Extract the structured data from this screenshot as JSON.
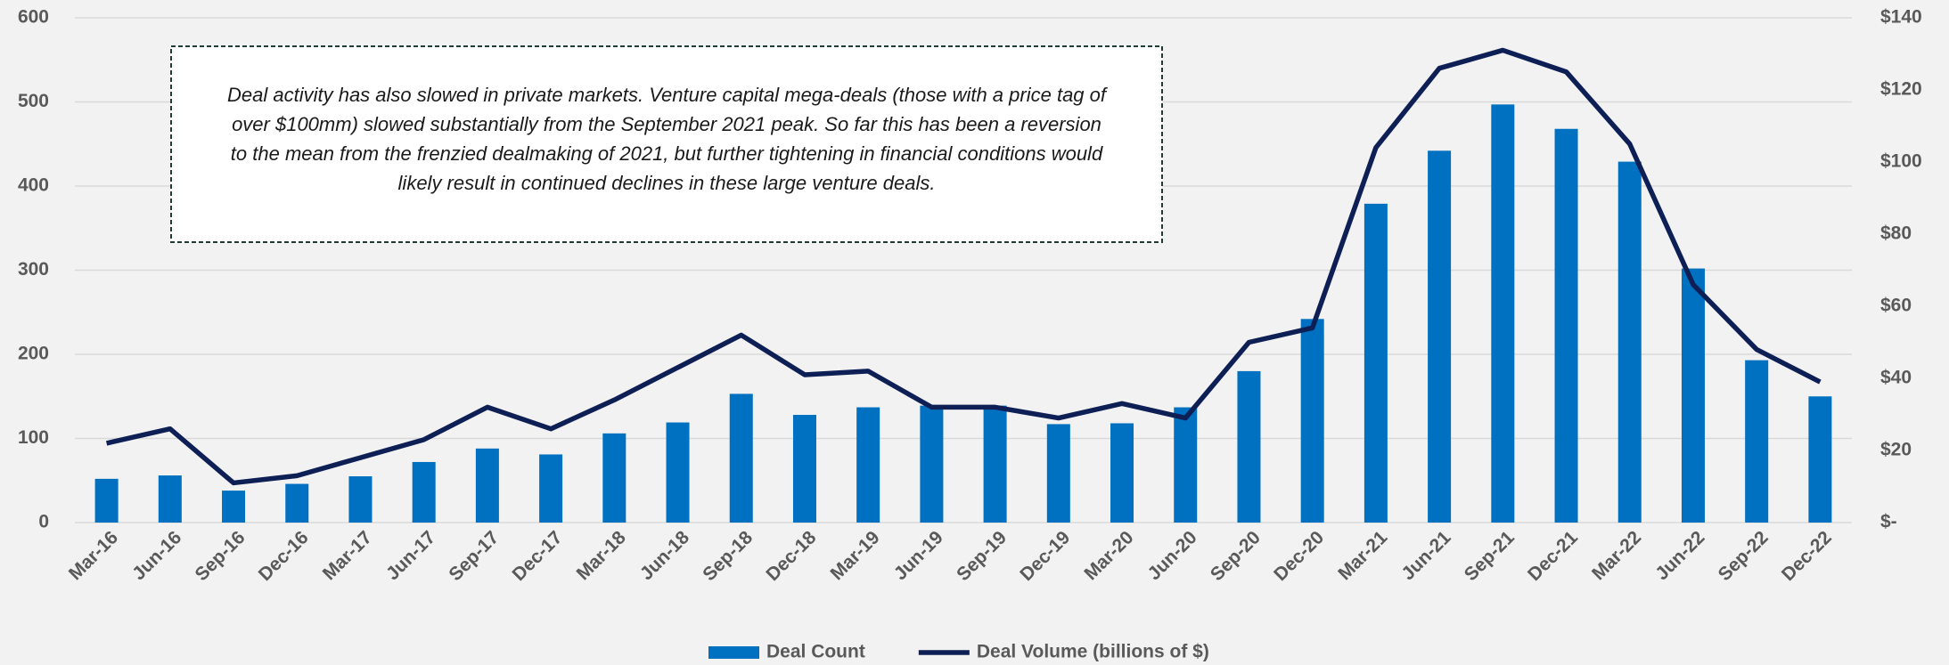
{
  "chart_data": {
    "type": "bar_line",
    "annotation": "Deal activity has also slowed in private markets. Venture capital mega-deals (those with a price tag of over $100mm) slowed substantially from the September 2021 peak. So far this has been a reversion to the mean from the frenzied dealmaking of 2021, but further tightening in financial conditions would likely result in continued declines in these large venture deals.",
    "categories": [
      "Mar-16",
      "Jun-16",
      "Sep-16",
      "Dec-16",
      "Mar-17",
      "Jun-17",
      "Sep-17",
      "Dec-17",
      "Mar-18",
      "Jun-18",
      "Sep-18",
      "Dec-18",
      "Mar-19",
      "Jun-19",
      "Sep-19",
      "Dec-19",
      "Mar-20",
      "Jun-20",
      "Sep-20",
      "Dec-20",
      "Mar-21",
      "Jun-21",
      "Sep-21",
      "Dec-21",
      "Mar-22",
      "Jun-22",
      "Sep-22",
      "Dec-22"
    ],
    "series": [
      {
        "name": "Deal Count",
        "type": "bar",
        "color": "#0070c0",
        "values": [
          52,
          56,
          38,
          46,
          55,
          72,
          88,
          81,
          106,
          119,
          153,
          128,
          137,
          139,
          139,
          117,
          118,
          137,
          180,
          242,
          379,
          442,
          497,
          468,
          429,
          302,
          193,
          150
        ]
      },
      {
        "name": "Deal Volume (billions of $)",
        "type": "line",
        "axis": "y2",
        "color": "#0d1f55",
        "values": [
          22,
          26,
          11,
          13,
          18,
          23,
          32,
          26,
          34,
          43,
          52,
          41,
          42,
          32,
          32,
          29,
          33,
          29,
          50,
          54,
          104,
          126,
          131,
          125,
          105,
          66,
          48,
          39
        ]
      }
    ],
    "ylim": [
      0,
      600
    ],
    "yticks": [
      0,
      100,
      200,
      300,
      400,
      500,
      600
    ],
    "y2lim": [
      0,
      140
    ],
    "y2ticks": [
      {
        "value": 0,
        "label": "$-"
      },
      {
        "value": 20,
        "label": "$20"
      },
      {
        "value": 40,
        "label": "$40"
      },
      {
        "value": 60,
        "label": "$60"
      },
      {
        "value": 80,
        "label": "$80"
      },
      {
        "value": 100,
        "label": "$100"
      },
      {
        "value": 120,
        "label": "$120"
      },
      {
        "value": 140,
        "label": "$140"
      }
    ],
    "grid": true,
    "legend": "bottom"
  }
}
